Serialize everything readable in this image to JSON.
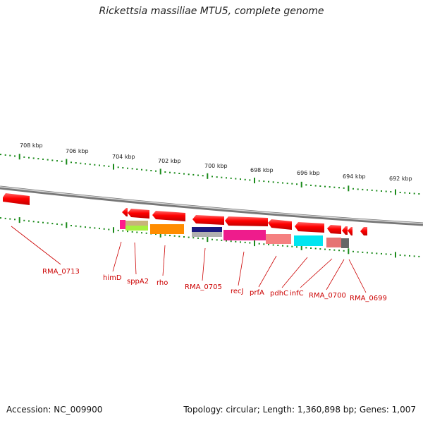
{
  "title": "Rickettsia massiliae MTU5, complete genome",
  "accession": "Accession: NC_009900",
  "summary": "Topology: circular; Length: 1,360,898 bp; Genes: 1,007",
  "ruler_labels": [
    "708 kbp",
    "706 kbp",
    "704 kbp",
    "702 kbp",
    "700 kbp",
    "698 kbp",
    "696 kbp",
    "694 kbp",
    "692 kbp"
  ],
  "gene_labels": [
    "RMA_0713",
    "himD",
    "sppA2",
    "rho",
    "RMA_0705",
    "recJ",
    "prfA",
    "pdhC",
    "infC",
    "RMA_0700",
    "RMA_0699"
  ],
  "colors": {
    "gene_arrow": "#ff0000",
    "label": "#cc0000",
    "tick": "#1a8a1a",
    "backbone": "#888888"
  }
}
